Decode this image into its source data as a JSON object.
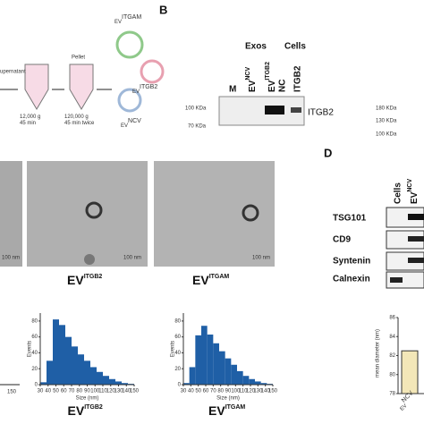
{
  "panel_a": {
    "steps": [
      "upernatant",
      "Pellet"
    ],
    "spins": [
      "12,000 g\n45 min",
      "120,000 g\n45 min  twice"
    ],
    "vesicles": [
      {
        "base": "EV",
        "sup": "ITGAM"
      },
      {
        "base": "EV",
        "sup": "ITGB2"
      },
      {
        "base": "EV",
        "sup": "NCV"
      }
    ]
  },
  "panel_b": {
    "label": "B",
    "groups": [
      "Exos",
      "Cells"
    ],
    "lanes": [
      "M",
      {
        "base": "EV",
        "sup": "NCV"
      },
      {
        "base": "EV",
        "sup": "ITGB2"
      },
      "NC",
      "ITGB2"
    ],
    "markers": [
      "100 KDa",
      "70 KDa"
    ],
    "band": "ITGB2",
    "markers_right": [
      "180 KDa",
      "130 KDa",
      "100 KDa"
    ]
  },
  "panel_c": {
    "scale_bars": [
      "100 nm",
      "100 nm",
      "100 nm"
    ],
    "captions": [
      {
        "base": "EV",
        "sup": "ITGB2"
      },
      {
        "base": "EV",
        "sup": "ITGAM"
      }
    ]
  },
  "panel_d": {
    "label": "D",
    "lanes": [
      "Cells",
      {
        "base": "EV",
        "sup": "NCV"
      }
    ],
    "rows": [
      "TSG101",
      "CD9",
      "Syntenin",
      "Calnexin"
    ]
  },
  "histograms": [
    {
      "ylabel": "Events",
      "xlabel": "Size (nm)",
      "bins": [
        30,
        38,
        46,
        54,
        62,
        70,
        78,
        86,
        94,
        102,
        110,
        118,
        126,
        134,
        142,
        150
      ],
      "counts": [
        3,
        30,
        82,
        75,
        60,
        48,
        38,
        30,
        22,
        16,
        11,
        7,
        4,
        2,
        1
      ],
      "color": "#1f5fa6",
      "xlim": [
        30,
        150
      ],
      "xticks": [
        30,
        40,
        50,
        60,
        70,
        80,
        90,
        100,
        110,
        120,
        130,
        140,
        150
      ],
      "ylim": [
        0,
        90
      ],
      "yticks": [
        0,
        20,
        40,
        60,
        80
      ],
      "caption": {
        "base": "EV",
        "sup": "ITGB2"
      }
    },
    {
      "ylabel": "Events",
      "xlabel": "Size (nm)",
      "bins": [
        30,
        38,
        46,
        54,
        62,
        70,
        78,
        86,
        94,
        102,
        110,
        118,
        126,
        134,
        142,
        150
      ],
      "counts": [
        2,
        22,
        62,
        74,
        63,
        52,
        42,
        33,
        25,
        17,
        11,
        7,
        4,
        2,
        1
      ],
      "color": "#1f5fa6",
      "xlim": [
        30,
        150
      ],
      "xticks": [
        30,
        40,
        50,
        60,
        70,
        80,
        90,
        100,
        110,
        120,
        130,
        140,
        150
      ],
      "ylim": [
        0,
        90
      ],
      "yticks": [
        0,
        20,
        40,
        60,
        80
      ],
      "caption": {
        "base": "EV",
        "sup": "ITGAM"
      }
    }
  ],
  "left_hist_tick": 150,
  "diameter": {
    "ylabel": "mean diameter (nm)",
    "ylim": [
      78,
      86
    ],
    "yticks": [
      78,
      80,
      82,
      84,
      86
    ],
    "value": 82.5,
    "color": "#f3e7b8",
    "category": {
      "base": "EV",
      "sup": "NCV"
    }
  }
}
